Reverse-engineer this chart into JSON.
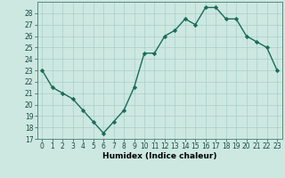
{
  "x": [
    0,
    1,
    2,
    3,
    4,
    5,
    6,
    7,
    8,
    9,
    10,
    11,
    12,
    13,
    14,
    15,
    16,
    17,
    18,
    19,
    20,
    21,
    22,
    23
  ],
  "y": [
    23,
    21.5,
    21,
    20.5,
    19.5,
    18.5,
    17.5,
    18.5,
    19.5,
    21.5,
    24.5,
    24.5,
    26,
    26.5,
    27.5,
    27,
    28.5,
    28.5,
    27.5,
    27.5,
    26,
    25.5,
    25,
    23
  ],
  "xlabel": "Humidex (Indice chaleur)",
  "ylim": [
    17,
    29
  ],
  "xlim": [
    -0.5,
    23.5
  ],
  "yticks": [
    17,
    18,
    19,
    20,
    21,
    22,
    23,
    24,
    25,
    26,
    27,
    28
  ],
  "xticks": [
    0,
    1,
    2,
    3,
    4,
    5,
    6,
    7,
    8,
    9,
    10,
    11,
    12,
    13,
    14,
    15,
    16,
    17,
    18,
    19,
    20,
    21,
    22,
    23
  ],
  "xtick_labels": [
    "0",
    "1",
    "2",
    "3",
    "4",
    "5",
    "6",
    "7",
    "8",
    "9",
    "10",
    "11",
    "12",
    "13",
    "14",
    "15",
    "16",
    "17",
    "18",
    "19",
    "20",
    "21",
    "22",
    "23"
  ],
  "line_color": "#1a6b5a",
  "marker": "D",
  "marker_size": 2.2,
  "bg_color": "#cce8e0",
  "grid_color_major": "#aacfc8",
  "grid_color_minor": "#bbdbd4",
  "line_width": 1.0,
  "tick_fontsize": 5.5,
  "xlabel_fontsize": 6.5
}
